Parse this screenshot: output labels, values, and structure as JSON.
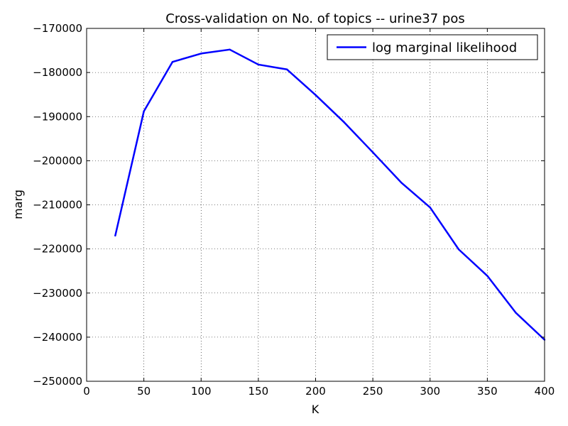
{
  "chart_data": {
    "type": "line",
    "title": "Cross-validation on No. of topics -- urine37 pos",
    "xlabel": "K",
    "ylabel": "marg",
    "xlim": [
      0,
      400
    ],
    "ylim": [
      -250000,
      -170000
    ],
    "xticks": [
      "0",
      "50",
      "100",
      "150",
      "200",
      "250",
      "300",
      "350",
      "400"
    ],
    "xtick_values": [
      0,
      50,
      100,
      150,
      200,
      250,
      300,
      350,
      400
    ],
    "yticks": [
      "−170000",
      "−180000",
      "−190000",
      "−200000",
      "−210000",
      "−220000",
      "−230000",
      "−240000",
      "−250000"
    ],
    "ytick_values": [
      -170000,
      -180000,
      -190000,
      -200000,
      -210000,
      -220000,
      -230000,
      -240000,
      -250000
    ],
    "grid": true,
    "legend_position": "top-right",
    "series": [
      {
        "name": "log marginal likelihood",
        "color": "#0000ff",
        "x": [
          25,
          50,
          75,
          100,
          125,
          150,
          175,
          200,
          225,
          250,
          275,
          300,
          325,
          350,
          375,
          400
        ],
        "y": [
          -217000,
          -188800,
          -177600,
          -175700,
          -174800,
          -178200,
          -179300,
          -185100,
          -191300,
          -198100,
          -205000,
          -210600,
          -220100,
          -226100,
          -234500,
          -240600
        ]
      }
    ]
  }
}
